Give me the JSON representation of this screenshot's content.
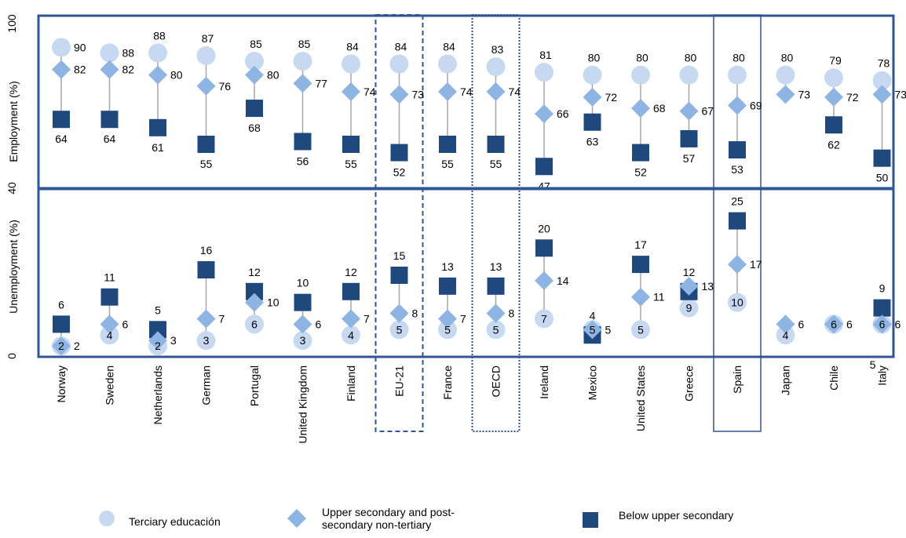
{
  "chart_data": {
    "type": "scatter",
    "categories": [
      "Norway",
      "Sweden",
      "Netherlands",
      "German",
      "Portugal",
      "United Kingdom",
      "Finland",
      "EU-21",
      "France",
      "OECD",
      "Ireland",
      "Mexico",
      "United States",
      "Greece",
      "Spain",
      "Japan",
      "Chile",
      "Italy"
    ],
    "employment": {
      "ylabel": "Employment (%)",
      "ylim": [
        40,
        100
      ],
      "ticks": [
        "100",
        "40"
      ],
      "series": [
        {
          "name": "Terciary educación",
          "values": [
            90,
            88,
            88,
            87,
            85,
            85,
            84,
            84,
            84,
            83,
            81,
            80,
            80,
            80,
            80,
            80,
            79,
            78
          ],
          "labels": [
            "90",
            "88",
            "88",
            "87",
            "85",
            "85",
            "84",
            "84",
            "84",
            "83",
            "81",
            "80",
            "80",
            "80",
            "80",
            "80",
            "79",
            "78"
          ]
        },
        {
          "name": "Upper secondary and post-secondary non-tertiary",
          "values": [
            82,
            82,
            80,
            76,
            80,
            77,
            74,
            73,
            74,
            74,
            66,
            72,
            68,
            67,
            69,
            73,
            72,
            73
          ],
          "labels": [
            "82",
            "82",
            "80",
            "76",
            "80",
            "77",
            "74",
            "73",
            "74",
            "74",
            "66",
            "72",
            "68",
            "67",
            "69",
            "73",
            "72",
            "73"
          ]
        },
        {
          "name": "Below upper secondary",
          "values": [
            64,
            64,
            61,
            55,
            68,
            56,
            55,
            52,
            55,
            55,
            47,
            63,
            52,
            57,
            53,
            null,
            62,
            50
          ],
          "labels": [
            "64",
            "64",
            "61",
            "55",
            "68",
            "56",
            "55",
            "52",
            "55",
            "55",
            "47",
            "63",
            "52",
            "57",
            "53",
            "",
            "62",
            "50"
          ]
        }
      ]
    },
    "unemployment": {
      "ylabel": "Unemployment (%)",
      "ylim": [
        0,
        31
      ],
      "ticks": [
        "0"
      ],
      "series": [
        {
          "name": "Terciary educación",
          "values": [
            2,
            4,
            2,
            3,
            6,
            3,
            4,
            5,
            5,
            5,
            7,
            5,
            5,
            9,
            10,
            4,
            6,
            6
          ],
          "labels": [
            "2",
            "4",
            "2",
            "3",
            "6",
            "3",
            "4",
            "5",
            "5",
            "5",
            "7",
            "5",
            "5",
            "9",
            "10",
            "4",
            "6",
            "6"
          ]
        },
        {
          "name": "Upper secondary and post-secondary non-tertiary",
          "values": [
            2,
            6,
            3,
            7,
            10,
            6,
            7,
            8,
            7,
            8,
            14,
            5,
            11,
            13,
            17,
            6,
            6,
            6
          ],
          "labels": [
            "2",
            "6",
            "3",
            "7",
            "10",
            "6",
            "7",
            "8",
            "7",
            "8",
            "14",
            "5",
            "11",
            "13",
            "17",
            "6",
            "6",
            "6"
          ]
        },
        {
          "name": "Below upper secondary",
          "values": [
            6,
            11,
            5,
            16,
            12,
            10,
            12,
            15,
            13,
            13,
            20,
            4,
            17,
            12,
            25,
            null,
            null,
            9
          ],
          "labels": [
            "6",
            "11",
            "5",
            "16",
            "12",
            "10",
            "12",
            "15",
            "13",
            "13",
            "20",
            "4",
            "17",
            "12",
            "25",
            "",
            "",
            "9"
          ]
        }
      ]
    },
    "extra_label": "5",
    "legend": {
      "placement": "bottom",
      "items": [
        {
          "label": "Terciary educación",
          "shape": "circle"
        },
        {
          "label": "Upper secondary and post-\nsecondary non-tertiary",
          "shape": "diamond"
        },
        {
          "label": "Below upper secondary",
          "shape": "square"
        }
      ]
    },
    "highlighted": [
      {
        "category": "EU-21",
        "style": "dashed"
      },
      {
        "category": "OECD",
        "style": "dotted"
      },
      {
        "category": "Spain",
        "style": "solid"
      }
    ],
    "colors": {
      "tertiary": "#c6d9f1",
      "upper": "#8eb4e3",
      "below": "#1f497d",
      "frame": "#2f5597",
      "stem": "#a6a6a6"
    }
  }
}
